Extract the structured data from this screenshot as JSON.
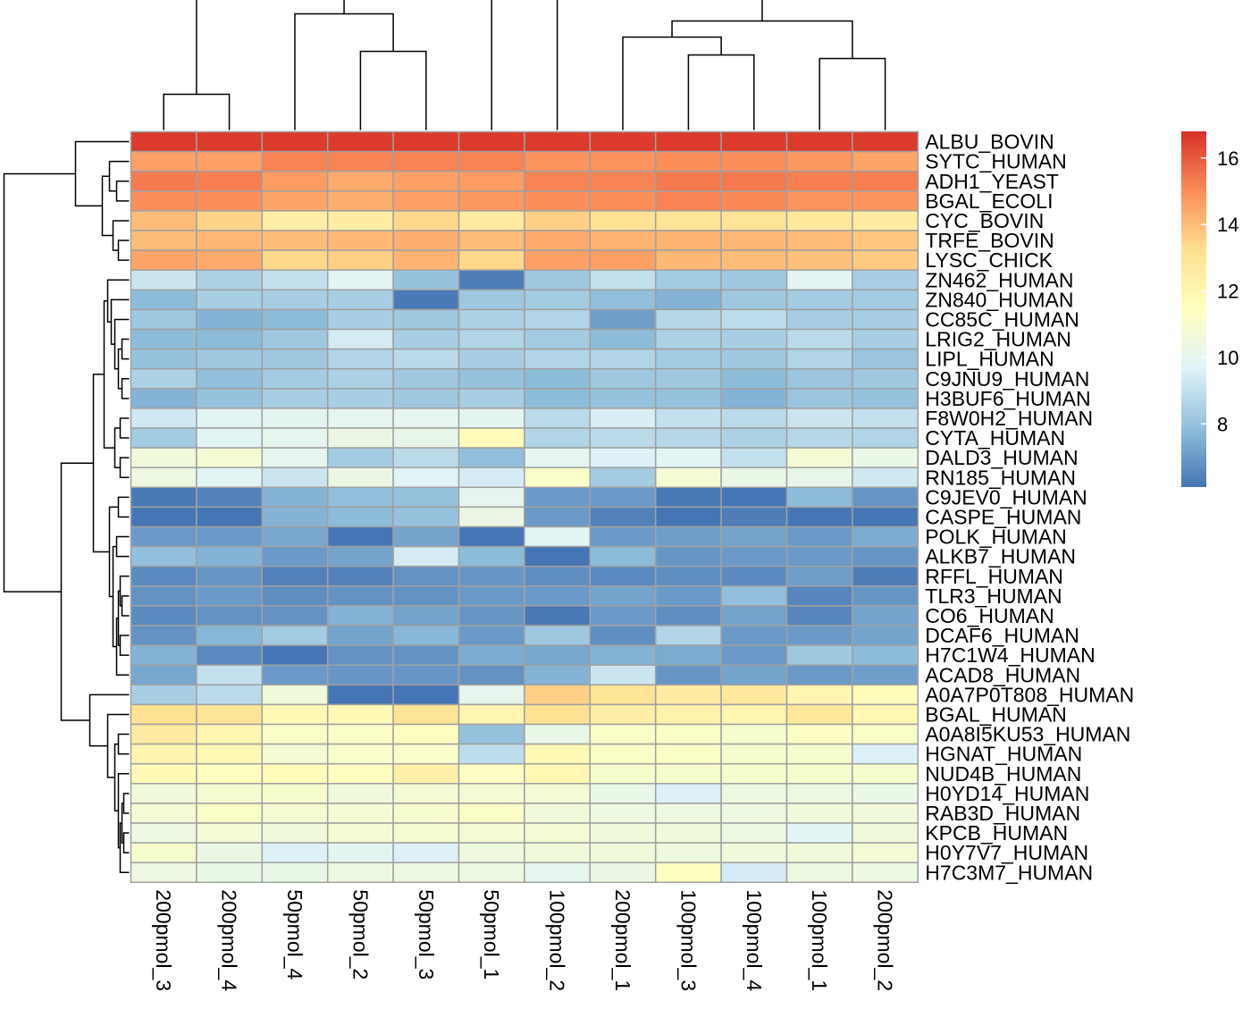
{
  "chart_data": {
    "type": "heatmap",
    "title": "",
    "xlabel": "",
    "ylabel": "",
    "columns": [
      "200pmol_3",
      "200pmol_4",
      "50pmol_4",
      "50pmol_2",
      "50pmol_3",
      "50pmol_1",
      "100pmol_2",
      "200pmol_1",
      "100pmol_3",
      "100pmol_4",
      "100pmol_1",
      "200pmol_2"
    ],
    "rows": [
      "ALBU_BOVIN",
      "SYTC_HUMAN",
      "ADH1_YEAST",
      "BGAL_ECOLI",
      "CYC_BOVIN",
      "TRFE_BOVIN",
      "LYSC_CHICK",
      "ZN462_HUMAN",
      "ZN840_HUMAN",
      "CC85C_HUMAN",
      "LRIG2_HUMAN",
      "LIPL_HUMAN",
      "C9JNU9_HUMAN",
      "H3BUF6_HUMAN",
      "F8W0H2_HUMAN",
      "CYTA_HUMAN",
      "DALD3_HUMAN",
      "RN185_HUMAN",
      "C9JEV0_HUMAN",
      "CASPE_HUMAN",
      "POLK_HUMAN",
      "ALKB7_HUMAN",
      "RFFL_HUMAN",
      "TLR3_HUMAN",
      "CO6_HUMAN",
      "DCAF6_HUMAN",
      "H7C1W4_HUMAN",
      "ACAD8_HUMAN",
      "A0A7P0T808_HUMAN",
      "BGAL_HUMAN",
      "A0A8I5KU53_HUMAN",
      "HGNAT_HUMAN",
      "NUD4B_HUMAN",
      "H0YD14_HUMAN",
      "RAB3D_HUMAN",
      "KPCB_HUMAN",
      "H0Y7V7_HUMAN",
      "H7C3M7_HUMAN"
    ],
    "values": [
      [
        16.6,
        16.6,
        16.6,
        16.6,
        16.6,
        16.6,
        16.6,
        16.6,
        16.6,
        16.6,
        16.6,
        16.6
      ],
      [
        14.6,
        14.6,
        15.2,
        15.2,
        15.2,
        15.2,
        14.9,
        14.9,
        15.0,
        15.0,
        14.8,
        14.5
      ],
      [
        15.4,
        15.3,
        14.7,
        14.4,
        14.6,
        14.7,
        15.2,
        15.2,
        15.4,
        15.4,
        15.3,
        15.3
      ],
      [
        15.0,
        15.0,
        14.5,
        14.3,
        14.6,
        14.8,
        15.0,
        15.0,
        15.2,
        15.1,
        14.9,
        14.9
      ],
      [
        14.0,
        13.5,
        12.4,
        12.5,
        13.4,
        12.6,
        13.6,
        13.1,
        13.0,
        13.0,
        12.8,
        12.6
      ],
      [
        14.0,
        14.1,
        14.0,
        14.1,
        14.3,
        14.0,
        14.4,
        14.2,
        14.2,
        14.1,
        14.0,
        13.8
      ],
      [
        14.5,
        14.4,
        13.4,
        13.6,
        14.2,
        13.4,
        14.6,
        14.6,
        14.1,
        14.0,
        13.9,
        13.7
      ],
      [
        9.2,
        8.5,
        9.0,
        9.8,
        8.0,
        6.3,
        8.2,
        9.0,
        8.3,
        8.2,
        9.8,
        8.4
      ],
      [
        7.8,
        8.4,
        8.4,
        8.4,
        6.2,
        8.2,
        8.3,
        7.9,
        7.6,
        8.2,
        8.3,
        8.3
      ],
      [
        8.2,
        7.6,
        7.8,
        8.4,
        8.2,
        8.5,
        8.6,
        7.1,
        8.7,
        8.9,
        8.4,
        8.4
      ],
      [
        7.8,
        7.8,
        8.2,
        9.4,
        8.4,
        8.6,
        8.3,
        7.8,
        8.5,
        8.4,
        8.8,
        8.4
      ],
      [
        8.0,
        8.2,
        8.2,
        8.6,
        8.8,
        8.4,
        8.6,
        8.6,
        8.3,
        8.2,
        8.6,
        8.1
      ],
      [
        8.5,
        7.9,
        8.3,
        8.5,
        8.2,
        8.0,
        7.8,
        8.2,
        8.2,
        7.8,
        8.1,
        8.2
      ],
      [
        7.6,
        8.0,
        8.4,
        8.4,
        8.2,
        8.4,
        7.8,
        8.0,
        8.0,
        7.6,
        8.1,
        8.0
      ],
      [
        9.3,
        9.8,
        9.9,
        10.0,
        10.0,
        9.9,
        8.8,
        9.5,
        9.0,
        8.8,
        9.2,
        9.0
      ],
      [
        8.3,
        9.8,
        10.0,
        10.3,
        10.1,
        11.6,
        8.6,
        8.8,
        8.7,
        8.5,
        8.7,
        8.6
      ],
      [
        10.6,
        10.8,
        10.0,
        8.3,
        8.8,
        7.9,
        10.0,
        9.6,
        9.8,
        9.0,
        10.8,
        10.2
      ],
      [
        10.4,
        9.8,
        9.2,
        10.3,
        9.7,
        9.4,
        11.1,
        8.3,
        10.8,
        10.2,
        10.1,
        9.3
      ],
      [
        6.2,
        6.4,
        7.6,
        7.9,
        8.0,
        10.0,
        7.0,
        7.0,
        6.2,
        6.0,
        7.8,
        6.9
      ],
      [
        5.9,
        5.9,
        7.6,
        7.8,
        8.0,
        10.3,
        7.0,
        6.4,
        5.9,
        6.3,
        5.9,
        6.0
      ],
      [
        7.0,
        7.0,
        7.3,
        6.0,
        7.2,
        6.1,
        9.8,
        7.0,
        7.1,
        7.2,
        7.0,
        7.4
      ],
      [
        7.9,
        7.6,
        7.0,
        7.2,
        9.4,
        7.8,
        6.1,
        7.8,
        6.9,
        7.0,
        7.0,
        6.9
      ],
      [
        6.6,
        6.9,
        6.4,
        6.4,
        6.8,
        6.9,
        6.7,
        6.6,
        6.7,
        6.6,
        7.1,
        6.3
      ],
      [
        6.8,
        7.0,
        6.7,
        6.8,
        6.8,
        7.0,
        7.0,
        7.2,
        7.0,
        7.9,
        6.5,
        6.9
      ],
      [
        6.6,
        6.8,
        6.8,
        7.6,
        7.2,
        6.9,
        6.2,
        7.0,
        6.7,
        7.2,
        6.5,
        7.2
      ],
      [
        6.8,
        7.7,
        8.3,
        7.2,
        7.7,
        7.0,
        8.2,
        6.7,
        8.6,
        7.0,
        7.0,
        7.2
      ],
      [
        7.6,
        6.6,
        5.8,
        6.8,
        6.8,
        7.4,
        7.3,
        7.6,
        7.4,
        7.0,
        8.2,
        7.8
      ],
      [
        7.3,
        9.0,
        7.0,
        6.9,
        6.9,
        6.8,
        7.6,
        9.2,
        6.9,
        7.2,
        7.0,
        7.1
      ],
      [
        8.4,
        8.8,
        10.6,
        6.0,
        6.0,
        10.0,
        13.6,
        13.0,
        12.6,
        12.7,
        12.0,
        11.6
      ],
      [
        13.2,
        13.0,
        11.8,
        11.8,
        13.0,
        12.0,
        13.2,
        12.4,
        12.2,
        12.0,
        12.8,
        11.9
      ],
      [
        12.6,
        12.0,
        11.2,
        11.2,
        11.4,
        8.0,
        10.2,
        11.2,
        11.2,
        11.0,
        11.3,
        11.2
      ],
      [
        12.1,
        11.8,
        10.8,
        11.1,
        11.1,
        8.9,
        11.8,
        11.2,
        11.2,
        11.0,
        11.0,
        9.6
      ],
      [
        11.8,
        11.4,
        11.7,
        11.4,
        12.3,
        11.3,
        11.9,
        11.0,
        11.0,
        11.0,
        11.0,
        11.0
      ],
      [
        10.6,
        10.9,
        11.0,
        10.6,
        10.8,
        10.8,
        10.8,
        10.2,
        9.6,
        10.4,
        10.4,
        10.2
      ],
      [
        10.8,
        11.2,
        10.9,
        10.8,
        11.0,
        11.2,
        10.6,
        10.4,
        10.4,
        10.4,
        10.6,
        10.6
      ],
      [
        10.4,
        10.8,
        10.6,
        10.8,
        10.9,
        10.8,
        10.8,
        10.6,
        10.6,
        10.4,
        9.8,
        10.6
      ],
      [
        11.0,
        10.3,
        9.6,
        9.9,
        9.6,
        10.5,
        10.6,
        10.6,
        10.5,
        10.6,
        10.6,
        10.8
      ],
      [
        10.4,
        10.2,
        10.2,
        10.4,
        10.4,
        10.4,
        10.0,
        10.3,
        11.4,
        9.4,
        10.4,
        10.4
      ]
    ],
    "color_scale": {
      "stops": [
        "#4575B4",
        "#91BFDB",
        "#E0F3F8",
        "#FFFFBF",
        "#FEE090",
        "#FC8D59",
        "#D73027"
      ],
      "min": 6.1,
      "max": 16.8
    },
    "legend": {
      "ticks": [
        8,
        10,
        12,
        14,
        16
      ],
      "placement": "right"
    },
    "cell_border_color": "#A0A0A0",
    "dendrograms": {
      "columns": "top",
      "rows": "left"
    }
  }
}
